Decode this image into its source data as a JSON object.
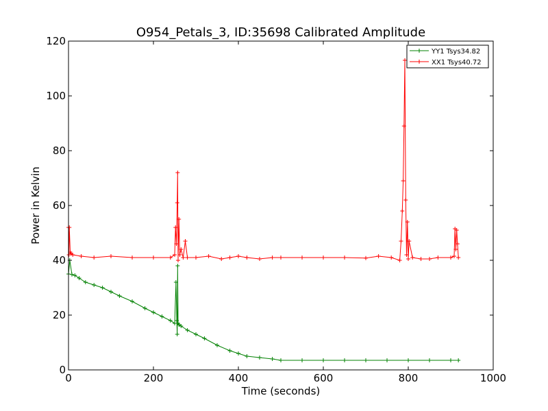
{
  "chart_data": {
    "type": "line",
    "title": "O954_Petals_3, ID:35698 Calibrated Amplitude",
    "xlabel": "Time (seconds)",
    "ylabel": "Power in Kelvin",
    "xlim": [
      0,
      1000
    ],
    "ylim": [
      0,
      120
    ],
    "xticks": [
      0,
      200,
      400,
      600,
      800,
      1000
    ],
    "yticks": [
      0,
      20,
      40,
      60,
      80,
      100,
      120
    ],
    "grid": false,
    "legend_position": "top-right",
    "marker": "+",
    "series": [
      {
        "name": "YY1 Tsys34.82",
        "color": "#008000",
        "x": [
          0,
          3,
          8,
          15,
          25,
          40,
          60,
          80,
          100,
          120,
          150,
          180,
          200,
          220,
          240,
          250,
          253,
          255,
          256,
          257,
          258,
          260,
          265,
          280,
          300,
          320,
          350,
          380,
          400,
          420,
          450,
          480,
          500,
          550,
          600,
          650,
          700,
          750,
          800,
          850,
          900,
          918
        ],
        "y": [
          35,
          40,
          34.8,
          34.5,
          33.5,
          32,
          31,
          30,
          28.5,
          27,
          25,
          22.5,
          21,
          19.5,
          18,
          17,
          32,
          18,
          13,
          38,
          17,
          16.5,
          16,
          14.5,
          13,
          11.5,
          9,
          7,
          6,
          5,
          4.5,
          4,
          3.5,
          3.5,
          3.5,
          3.5,
          3.5,
          3.5,
          3.5,
          3.5,
          3.5,
          3.5
        ]
      },
      {
        "name": "XX1 Tsys40.72",
        "color": "#ff0000",
        "x": [
          0,
          1,
          2,
          4,
          6,
          10,
          30,
          60,
          100,
          150,
          200,
          240,
          250,
          252,
          254,
          256,
          257,
          258,
          260,
          262,
          265,
          270,
          275,
          280,
          300,
          330,
          360,
          380,
          400,
          420,
          450,
          480,
          500,
          550,
          600,
          650,
          700,
          730,
          760,
          780,
          783,
          786,
          788,
          790,
          792,
          794,
          796,
          798,
          800,
          802,
          810,
          830,
          850,
          870,
          900,
          908,
          910,
          912,
          914,
          916,
          918
        ],
        "y": [
          52,
          42,
          52,
          43,
          42.5,
          42,
          41.5,
          41,
          41.5,
          41,
          41,
          41,
          42,
          52,
          46,
          61,
          72,
          40,
          55,
          42,
          44,
          41,
          47,
          41,
          41,
          41.5,
          40.5,
          41,
          41.5,
          41,
          40.5,
          41,
          41,
          41,
          41,
          41,
          40.8,
          41.5,
          41,
          40,
          47,
          58,
          69,
          89,
          113,
          62,
          42,
          54,
          40.5,
          47,
          41,
          40.5,
          40.5,
          41,
          41,
          41.5,
          51.5,
          44,
          51,
          46,
          41
        ]
      }
    ]
  }
}
